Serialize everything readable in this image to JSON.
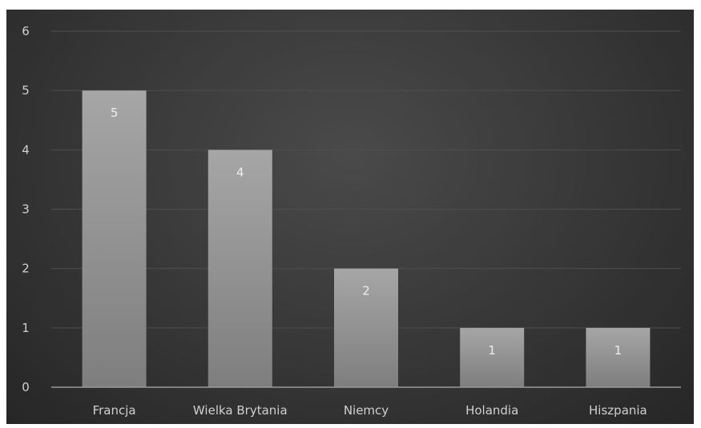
{
  "chart_data": {
    "type": "bar",
    "title": "",
    "xlabel": "",
    "ylabel": "",
    "categories": [
      "Francja",
      "Wielka Brytania",
      "Niemcy",
      "Holandia",
      "Hiszpania"
    ],
    "values": [
      5,
      4,
      2,
      1,
      1
    ],
    "data_labels": [
      "5",
      "4",
      "2",
      "1",
      "1"
    ],
    "ylim": [
      0,
      6
    ],
    "yticks": [
      "0",
      "1",
      "2",
      "3",
      "4",
      "5",
      "6"
    ],
    "grid": true,
    "legend": "none",
    "colors": {
      "bar_top": "#a6a6a6",
      "bar_bottom": "#7e7e7e",
      "gridline": "#4e4e4e",
      "axis": "#9a9a9a",
      "background": "#3a3a3a"
    }
  }
}
